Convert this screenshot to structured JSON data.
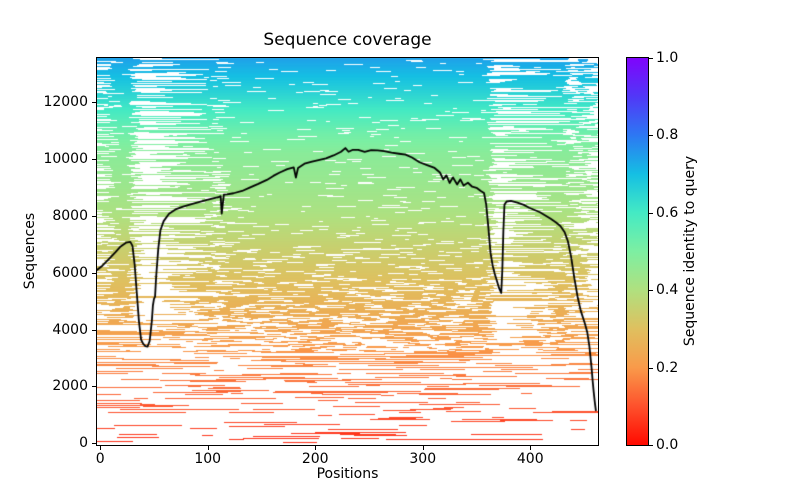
{
  "chart_data": {
    "type": "heatmap",
    "title": "Sequence coverage",
    "xlabel": "Positions",
    "ylabel": "Sequences",
    "xlim": [
      -3,
      463
    ],
    "ylim": [
      -60,
      13560
    ],
    "x_ticks": [
      0,
      100,
      200,
      300,
      400
    ],
    "y_ticks": [
      0,
      2000,
      4000,
      6000,
      8000,
      10000,
      12000
    ],
    "total_sequences": 13600,
    "alignment_length": 463,
    "grid": false,
    "background_color": "#ffffff",
    "coverage_line_color": "#000000",
    "rainbow_colormap": [
      [
        0.0,
        "#ff0a00"
      ],
      [
        0.1,
        "#fe512c"
      ],
      [
        0.2,
        "#f99a4a"
      ],
      [
        0.3,
        "#dfc05f"
      ],
      [
        0.4,
        "#b0e07f"
      ],
      [
        0.5,
        "#7defa2"
      ],
      [
        0.6,
        "#44eac4"
      ],
      [
        0.7,
        "#15bfe3"
      ],
      [
        0.8,
        "#2d78f3"
      ],
      [
        0.9,
        "#5138f7"
      ],
      [
        1.0,
        "#7f04fc"
      ]
    ],
    "row_identity_curve": [
      [
        0,
        0.05
      ],
      [
        0.1,
        0.11
      ],
      [
        0.2,
        0.17
      ],
      [
        0.3,
        0.23
      ],
      [
        0.4,
        0.29
      ],
      [
        0.5,
        0.345
      ],
      [
        0.6,
        0.41
      ],
      [
        0.7,
        0.455
      ],
      [
        0.75,
        0.475
      ],
      [
        0.8,
        0.52
      ],
      [
        0.85,
        0.585
      ],
      [
        0.9,
        0.645
      ],
      [
        0.95,
        0.7
      ],
      [
        1.0,
        0.745
      ]
    ],
    "coverage_line": [
      [
        -3,
        6100
      ],
      [
        2,
        6250
      ],
      [
        8,
        6480
      ],
      [
        14,
        6720
      ],
      [
        19,
        6930
      ],
      [
        24,
        7060
      ],
      [
        28,
        7090
      ],
      [
        30,
        6950
      ],
      [
        32,
        6300
      ],
      [
        34,
        5300
      ],
      [
        36,
        4300
      ],
      [
        38,
        3650
      ],
      [
        40,
        3500
      ],
      [
        42,
        3420
      ],
      [
        44,
        3400
      ],
      [
        46,
        3600
      ],
      [
        48,
        4300
      ],
      [
        49,
        4850
      ],
      [
        50,
        5080
      ],
      [
        51,
        5160
      ],
      [
        52,
        5850
      ],
      [
        54,
        6850
      ],
      [
        56,
        7500
      ],
      [
        59,
        7820
      ],
      [
        64,
        8080
      ],
      [
        70,
        8230
      ],
      [
        77,
        8330
      ],
      [
        85,
        8420
      ],
      [
        95,
        8520
      ],
      [
        104,
        8610
      ],
      [
        110,
        8660
      ],
      [
        112,
        8700
      ],
      [
        113,
        8080
      ],
      [
        115,
        8750
      ],
      [
        118,
        8760
      ],
      [
        124,
        8800
      ],
      [
        132,
        8880
      ],
      [
        139,
        9000
      ],
      [
        147,
        9130
      ],
      [
        155,
        9270
      ],
      [
        161,
        9410
      ],
      [
        167,
        9530
      ],
      [
        174,
        9650
      ],
      [
        180,
        9710
      ],
      [
        182,
        9350
      ],
      [
        184,
        9690
      ],
      [
        190,
        9840
      ],
      [
        197,
        9910
      ],
      [
        203,
        9970
      ],
      [
        210,
        10030
      ],
      [
        217,
        10130
      ],
      [
        224,
        10260
      ],
      [
        228,
        10390
      ],
      [
        231,
        10260
      ],
      [
        235,
        10330
      ],
      [
        240,
        10330
      ],
      [
        246,
        10260
      ],
      [
        252,
        10320
      ],
      [
        258,
        10310
      ],
      [
        264,
        10280
      ],
      [
        271,
        10230
      ],
      [
        278,
        10190
      ],
      [
        284,
        10160
      ],
      [
        290,
        10060
      ],
      [
        297,
        9890
      ],
      [
        304,
        9790
      ],
      [
        311,
        9690
      ],
      [
        316,
        9530
      ],
      [
        319,
        9290
      ],
      [
        322,
        9430
      ],
      [
        325,
        9160
      ],
      [
        328,
        9360
      ],
      [
        332,
        9110
      ],
      [
        335,
        9290
      ],
      [
        338,
        9070
      ],
      [
        342,
        9170
      ],
      [
        346,
        9030
      ],
      [
        350,
        8990
      ],
      [
        354,
        8880
      ],
      [
        357,
        8810
      ],
      [
        359,
        8410
      ],
      [
        361,
        7610
      ],
      [
        363,
        6710
      ],
      [
        365,
        6260
      ],
      [
        367,
        5960
      ],
      [
        369,
        5710
      ],
      [
        371,
        5460
      ],
      [
        373,
        5290
      ],
      [
        374,
        6100
      ],
      [
        375,
        7500
      ],
      [
        376,
        8400
      ],
      [
        378,
        8510
      ],
      [
        382,
        8530
      ],
      [
        388,
        8470
      ],
      [
        394,
        8390
      ],
      [
        399,
        8290
      ],
      [
        404,
        8210
      ],
      [
        409,
        8130
      ],
      [
        414,
        8020
      ],
      [
        419,
        7900
      ],
      [
        424,
        7770
      ],
      [
        428,
        7650
      ],
      [
        432,
        7430
      ],
      [
        435,
        7110
      ],
      [
        438,
        6560
      ],
      [
        441,
        5810
      ],
      [
        444,
        5160
      ],
      [
        447,
        4660
      ],
      [
        449,
        4430
      ],
      [
        451,
        4190
      ],
      [
        453,
        3910
      ],
      [
        455,
        3410
      ],
      [
        457,
        2660
      ],
      [
        458,
        2210
      ],
      [
        459,
        1810
      ],
      [
        460,
        1460
      ],
      [
        461,
        1160
      ]
    ],
    "msa_texture": {
      "seed": 42,
      "density": {
        "base": 0.06,
        "amplitude": 0.9,
        "midpoint": 0.28,
        "width": 0.09,
        "max": 0.955
      },
      "gap_bands": [
        [
          34,
          52,
          0.28
        ],
        [
          109,
          117,
          0.68
        ],
        [
          366,
          378,
          0.3
        ],
        [
          437,
          450,
          0.62
        ]
      ],
      "left_edge": {
        "until": 20,
        "min_factor": 0.55
      },
      "right_edge": {
        "from": 448,
        "slope": 0.055,
        "min_factor": 0.3
      }
    },
    "colorbar": {
      "label": "Sequence identity to query",
      "tick_values": [
        0.0,
        0.2,
        0.4,
        0.6,
        0.8,
        1.0
      ],
      "tick_labels": [
        "0.0",
        "0.2",
        "0.4",
        "0.6",
        "0.8",
        "1.0"
      ]
    }
  }
}
